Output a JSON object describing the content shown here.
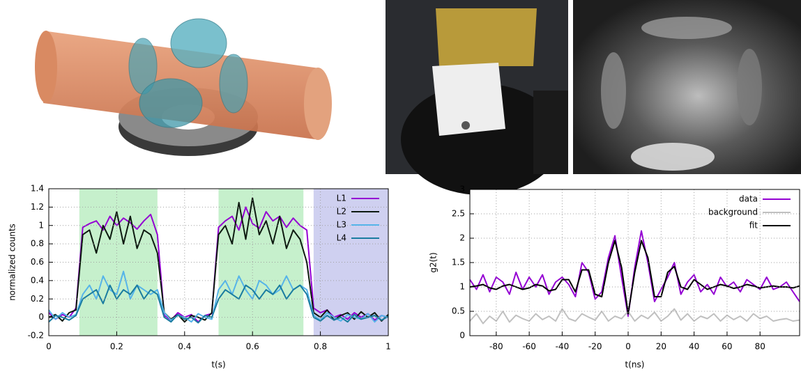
{
  "chart_data": [
    {
      "type": "line",
      "xlabel": "t(s)",
      "ylabel": "normalized counts",
      "x": [
        0,
        0.02,
        0.04,
        0.06,
        0.08,
        0.1,
        0.12,
        0.14,
        0.16,
        0.18,
        0.2,
        0.22,
        0.24,
        0.26,
        0.28,
        0.3,
        0.32,
        0.34,
        0.36,
        0.38,
        0.4,
        0.42,
        0.44,
        0.46,
        0.48,
        0.5,
        0.52,
        0.54,
        0.56,
        0.58,
        0.6,
        0.62,
        0.64,
        0.66,
        0.68,
        0.7,
        0.72,
        0.74,
        0.76,
        0.78,
        0.8,
        0.82,
        0.84,
        0.86,
        0.88,
        0.9,
        0.92,
        0.94,
        0.96,
        0.98,
        1
      ],
      "series": [
        {
          "name": "L1",
          "color": "#9400d3",
          "values": [
            0.05,
            -0.02,
            0.03,
            0.0,
            0.1,
            0.98,
            1.02,
            1.05,
            0.95,
            1.1,
            1.0,
            1.08,
            1.03,
            0.96,
            1.05,
            1.12,
            0.9,
            0.02,
            -0.03,
            0.05,
            0.0,
            0.03,
            -0.05,
            0.02,
            0.04,
            0.98,
            1.05,
            1.1,
            0.95,
            1.2,
            1.02,
            0.97,
            1.15,
            1.05,
            1.1,
            0.98,
            1.08,
            1.0,
            0.95,
            0.1,
            0.05,
            0.08,
            0.0,
            0.03,
            -0.02,
            0.05,
            0.0,
            0.04,
            -0.03,
            0.02,
            0.0
          ]
        },
        {
          "name": "L2",
          "color": "#0d1a10",
          "values": [
            0.0,
            0.03,
            -0.04,
            0.05,
            0.08,
            0.9,
            0.95,
            0.7,
            1.0,
            0.85,
            1.15,
            0.8,
            1.1,
            0.75,
            0.95,
            0.9,
            0.7,
            0.05,
            -0.02,
            0.03,
            -0.05,
            0.02,
            0.0,
            -0.03,
            0.05,
            0.9,
            1.0,
            0.8,
            1.25,
            0.85,
            1.3,
            0.9,
            1.05,
            0.8,
            1.1,
            0.75,
            0.95,
            0.85,
            0.6,
            0.05,
            0.0,
            0.08,
            -0.03,
            0.02,
            0.05,
            -0.02,
            0.06,
            0.0,
            0.05,
            -0.04,
            0.03
          ]
        },
        {
          "name": "L3",
          "color": "#56b4e9",
          "values": [
            0.08,
            -0.02,
            0.05,
            0.0,
            0.03,
            0.25,
            0.35,
            0.2,
            0.45,
            0.3,
            0.25,
            0.5,
            0.2,
            0.35,
            0.3,
            0.25,
            0.3,
            0.05,
            -0.03,
            0.02,
            0.0,
            -0.05,
            0.04,
            0.0,
            -0.02,
            0.3,
            0.4,
            0.25,
            0.45,
            0.3,
            0.2,
            0.4,
            0.35,
            0.25,
            0.3,
            0.45,
            0.3,
            0.35,
            0.3,
            0.02,
            -0.03,
            0.05,
            0.0,
            -0.04,
            0.03,
            0.0,
            -0.02,
            0.04,
            -0.05,
            0.02,
            0.0
          ]
        },
        {
          "name": "L4",
          "color": "#1a7ca0",
          "values": [
            -0.05,
            0.02,
            0.0,
            -0.03,
            0.02,
            0.2,
            0.25,
            0.3,
            0.15,
            0.35,
            0.2,
            0.3,
            0.25,
            0.35,
            0.2,
            0.3,
            0.25,
            0.0,
            -0.05,
            0.03,
            -0.02,
            0.0,
            -0.06,
            0.02,
            0.0,
            0.2,
            0.3,
            0.25,
            0.2,
            0.35,
            0.3,
            0.2,
            0.3,
            0.25,
            0.35,
            0.2,
            0.3,
            0.35,
            0.25,
            0.0,
            -0.04,
            0.02,
            -0.03,
            0.0,
            -0.05,
            0.03,
            -0.02,
            0.0,
            0.02,
            -0.03,
            0.01
          ]
        }
      ],
      "shaded_regions": [
        {
          "xmin": 0.09,
          "xmax": 0.32,
          "color": "#c6f0cc"
        },
        {
          "xmin": 0.5,
          "xmax": 0.75,
          "color": "#c6f0cc"
        },
        {
          "xmin": 0.78,
          "xmax": 1,
          "color": "#cfd0f0"
        }
      ],
      "xlim": [
        0,
        1
      ],
      "xticks": [
        0,
        0.2,
        0.4,
        0.6,
        0.8,
        1
      ],
      "ylim": [
        -0.2,
        1.4
      ],
      "yticks": [
        -0.2,
        0,
        0.2,
        0.4,
        0.6,
        0.8,
        1,
        1.2,
        1.4
      ],
      "grid": true,
      "legend": "upper right"
    },
    {
      "type": "line",
      "xlabel": "t(ns)",
      "ylabel": "g2(t)",
      "x": [
        -96,
        -92,
        -88,
        -84,
        -80,
        -76,
        -72,
        -68,
        -64,
        -60,
        -56,
        -52,
        -48,
        -44,
        -40,
        -36,
        -32,
        -28,
        -24,
        -20,
        -16,
        -12,
        -8,
        -4,
        0,
        4,
        8,
        12,
        16,
        20,
        24,
        28,
        32,
        36,
        40,
        44,
        48,
        52,
        56,
        60,
        64,
        68,
        72,
        76,
        80,
        84,
        88,
        92,
        96,
        100,
        104
      ],
      "series": [
        {
          "name": "data",
          "color": "#9400d3",
          "values": [
            1.15,
            0.95,
            1.25,
            0.9,
            1.2,
            1.1,
            0.85,
            1.3,
            0.95,
            1.2,
            1.0,
            1.25,
            0.85,
            1.1,
            1.2,
            1.05,
            0.8,
            1.5,
            1.3,
            0.75,
            0.9,
            1.6,
            2.05,
            1.2,
            0.4,
            1.4,
            2.15,
            1.5,
            0.7,
            0.95,
            1.2,
            1.5,
            0.85,
            1.1,
            1.25,
            0.9,
            1.05,
            0.85,
            1.2,
            1.0,
            1.1,
            0.9,
            1.15,
            1.05,
            0.95,
            1.2,
            0.95,
            1.0,
            1.1,
            0.9,
            0.7
          ]
        },
        {
          "name": "background",
          "color": "#c0c0c0",
          "values": [
            0.3,
            0.45,
            0.25,
            0.4,
            0.3,
            0.5,
            0.28,
            0.42,
            0.35,
            0.3,
            0.45,
            0.33,
            0.4,
            0.3,
            0.55,
            0.35,
            0.3,
            0.45,
            0.38,
            0.32,
            0.5,
            0.3,
            0.4,
            0.35,
            0.5,
            0.3,
            0.42,
            0.35,
            0.48,
            0.3,
            0.4,
            0.55,
            0.32,
            0.45,
            0.3,
            0.4,
            0.35,
            0.45,
            0.3,
            0.42,
            0.33,
            0.4,
            0.3,
            0.45,
            0.35,
            0.4,
            0.3,
            0.33,
            0.35,
            0.3,
            0.32
          ]
        },
        {
          "name": "fit",
          "color": "#000000",
          "values": [
            1.0,
            1.02,
            1.05,
            0.98,
            0.95,
            1.02,
            1.05,
            1.0,
            0.95,
            0.98,
            1.05,
            1.02,
            0.92,
            0.95,
            1.15,
            1.15,
            0.9,
            1.35,
            1.35,
            0.85,
            0.8,
            1.5,
            1.95,
            1.4,
            0.45,
            1.3,
            1.95,
            1.6,
            0.8,
            0.8,
            1.3,
            1.42,
            1.0,
            0.95,
            1.15,
            1.05,
            0.95,
            1.0,
            1.05,
            1.02,
            0.97,
            1.0,
            1.05,
            1.02,
            0.98,
            1.0,
            1.02,
            1.0,
            1.0,
            0.98,
            1.02
          ]
        }
      ],
      "xlim": [
        -96,
        104
      ],
      "xticks": [
        -80,
        -60,
        -40,
        -20,
        0,
        20,
        40,
        60,
        80
      ],
      "ylim": [
        0,
        3
      ],
      "yticks": [
        0,
        0.5,
        1,
        1.5,
        2,
        2.5,
        3
      ],
      "grid": true,
      "legend": "upper right"
    }
  ]
}
